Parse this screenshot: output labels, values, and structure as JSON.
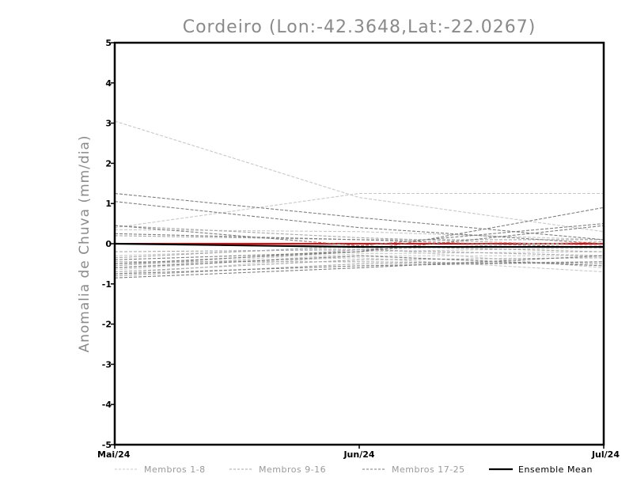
{
  "chart_data": {
    "type": "line",
    "title": "Cordeiro (Lon:-42.3648,Lat:-22.0267)",
    "xlabel": "",
    "ylabel": "Anomalia de Chuva (mm/dia)",
    "categories": [
      "Mai/24",
      "Jun/24",
      "Jul/24"
    ],
    "ylim": [
      -5,
      5
    ],
    "yticks": [
      -5,
      -4,
      -3,
      -2,
      -1,
      0,
      1,
      2,
      3,
      4,
      5
    ],
    "grid": false,
    "legend_position": "bottom",
    "legend": [
      {
        "label": "Membros 1-8",
        "group": "g1",
        "style": "dashed"
      },
      {
        "label": "Membros 9-16",
        "group": "g2",
        "style": "dashed"
      },
      {
        "label": "Membros 17-25",
        "group": "g3",
        "style": "dashed"
      },
      {
        "label": "Ensemble Mean",
        "group": "mean",
        "style": "solid"
      }
    ],
    "colors": {
      "g1": "#c8c8c8",
      "g2": "#a8a8a8",
      "g3": "#7e7e7e",
      "mean": "#000000",
      "zero_line": "#ff0000"
    },
    "series": [
      {
        "group": "g1",
        "values": [
          3.05,
          1.15,
          0.3
        ]
      },
      {
        "group": "g1",
        "values": [
          0.4,
          1.25,
          1.25
        ]
      },
      {
        "group": "g1",
        "values": [
          0.35,
          0.3,
          0.1
        ]
      },
      {
        "group": "g1",
        "values": [
          -0.3,
          -0.1,
          -0.6
        ]
      },
      {
        "group": "g1",
        "values": [
          -0.5,
          -0.35,
          -0.7
        ]
      },
      {
        "group": "g1",
        "values": [
          -0.6,
          -0.2,
          -0.1
        ]
      },
      {
        "group": "g1",
        "values": [
          -0.65,
          -0.25,
          -0.2
        ]
      },
      {
        "group": "g1",
        "values": [
          -0.75,
          -0.3,
          -0.3
        ]
      },
      {
        "group": "g2",
        "values": [
          0.45,
          0.15,
          -0.05
        ]
      },
      {
        "group": "g2",
        "values": [
          0.2,
          0.1,
          0.1
        ]
      },
      {
        "group": "g2",
        "values": [
          -0.2,
          -0.15,
          -0.3
        ]
      },
      {
        "group": "g2",
        "values": [
          -0.35,
          -0.05,
          -0.2
        ]
      },
      {
        "group": "g2",
        "values": [
          -0.45,
          -0.45,
          -0.5
        ]
      },
      {
        "group": "g2",
        "values": [
          -0.55,
          -0.15,
          0.05
        ]
      },
      {
        "group": "g2",
        "values": [
          -0.7,
          -0.4,
          -0.35
        ]
      },
      {
        "group": "g2",
        "values": [
          -0.8,
          -0.5,
          -0.45
        ]
      },
      {
        "group": "g3",
        "values": [
          1.25,
          0.65,
          0.1
        ]
      },
      {
        "group": "g3",
        "values": [
          1.05,
          0.4,
          0.0
        ]
      },
      {
        "group": "g3",
        "values": [
          0.45,
          -0.05,
          0.5
        ]
      },
      {
        "group": "g3",
        "values": [
          0.25,
          0.1,
          -0.1
        ]
      },
      {
        "group": "g3",
        "values": [
          -0.4,
          -0.2,
          0.9
        ]
      },
      {
        "group": "g3",
        "values": [
          -0.5,
          -0.2,
          0.45
        ]
      },
      {
        "group": "g3",
        "values": [
          -0.6,
          -0.3,
          -0.55
        ]
      },
      {
        "group": "g3",
        "values": [
          -0.75,
          -0.55,
          -0.45
        ]
      },
      {
        "group": "g3",
        "values": [
          -0.85,
          -0.6,
          -0.3
        ]
      },
      {
        "group": "mean",
        "values": [
          0.0,
          -0.08,
          -0.08
        ]
      }
    ],
    "reference_line": {
      "value": 0
    }
  }
}
